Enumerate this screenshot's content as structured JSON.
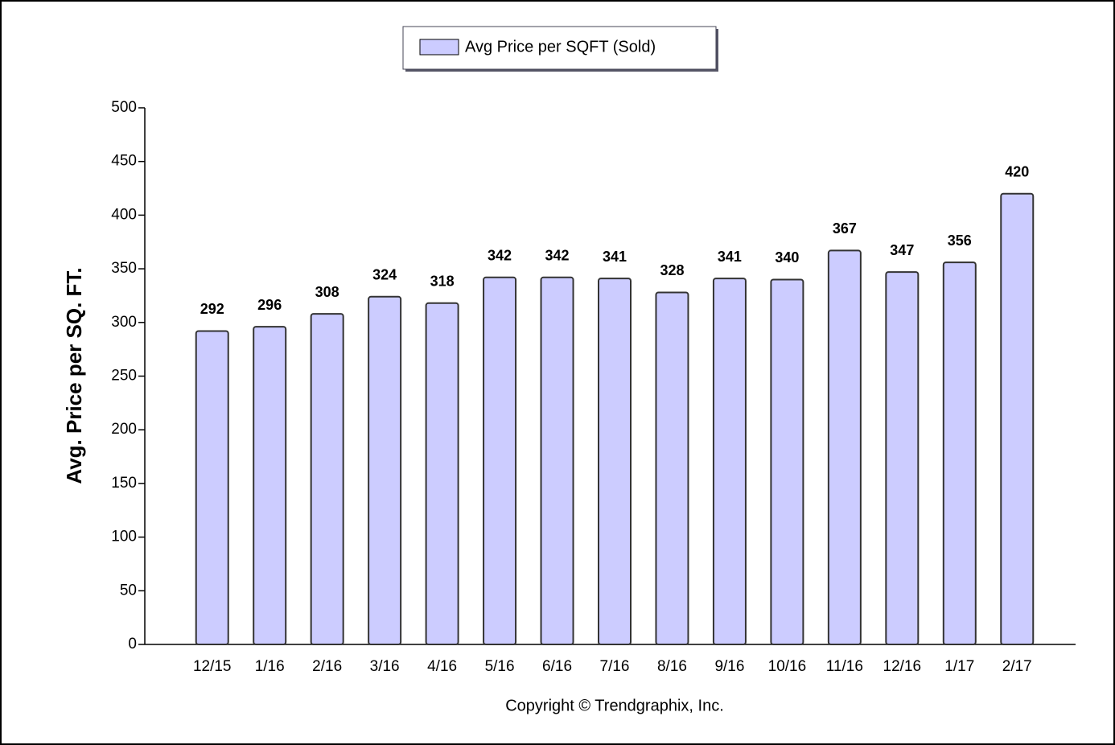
{
  "chart_data": {
    "type": "bar",
    "categories": [
      "12/15",
      "1/16",
      "2/16",
      "3/16",
      "4/16",
      "5/16",
      "6/16",
      "7/16",
      "8/16",
      "9/16",
      "10/16",
      "11/16",
      "12/16",
      "1/17",
      "2/17"
    ],
    "series": [
      {
        "name": "Avg Price per SQFT (Sold)",
        "color": "#ccccff",
        "values": [
          292,
          296,
          308,
          324,
          318,
          342,
          342,
          341,
          328,
          341,
          340,
          367,
          347,
          356,
          420
        ]
      }
    ],
    "ylabel": "Avg. Price per SQ. FT.",
    "ylim": [
      0,
      500
    ],
    "yticks": [
      0,
      50,
      100,
      150,
      200,
      250,
      300,
      350,
      400,
      450,
      500
    ],
    "grid": false,
    "legend": "top",
    "annotations": [
      "Copyright © Trendgraphix, Inc."
    ]
  }
}
